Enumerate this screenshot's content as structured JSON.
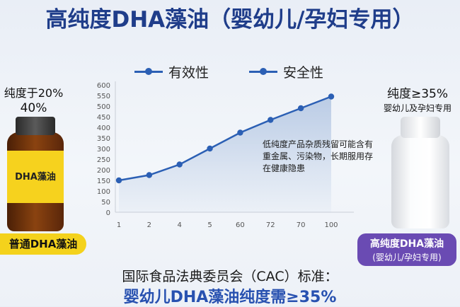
{
  "title": "高纯度DHA藻油（婴幼儿/孕妇专用）",
  "legend": [
    {
      "label": "有效性",
      "color": "#2b5fb4"
    },
    {
      "label": "安全性",
      "color": "#2b5fb4"
    }
  ],
  "left_product": {
    "purity_line1": "纯度于20%",
    "purity_line2": "40%",
    "bottle_label": "DHA藻油",
    "badge": "普通DHA藻油"
  },
  "right_product": {
    "purity_line1": "纯度≥35%",
    "purity_line2": "婴幼儿及孕妇专用",
    "badge_line1": "高纯度DHA藻油",
    "badge_line2": "(婴幼儿/孕妇专用)"
  },
  "note": "低纯度产品杂质残留可能含有重金属、污染物，长期服用存在健康隐患",
  "footer": {
    "line1": "国际食品法典委员会（CAC）标准：",
    "line2": "婴幼儿DHA藻油纯度需≥35%"
  },
  "chart_data": {
    "type": "line",
    "categories": [
      "1",
      "2",
      "4",
      "5",
      "60",
      "72",
      "70",
      "100"
    ],
    "series": [
      {
        "name": "有效性",
        "values": [
          150,
          175,
          225,
          300,
          375,
          435,
          490,
          545
        ]
      }
    ],
    "yticks": [
      "0",
      "50",
      "100",
      "150",
      "200",
      "250",
      "300",
      "350",
      "400",
      "450",
      "500",
      "550",
      "600"
    ],
    "ylim": [
      0,
      600
    ],
    "line_color": "#2b5fb4",
    "area_color": "#a9bfdf"
  }
}
